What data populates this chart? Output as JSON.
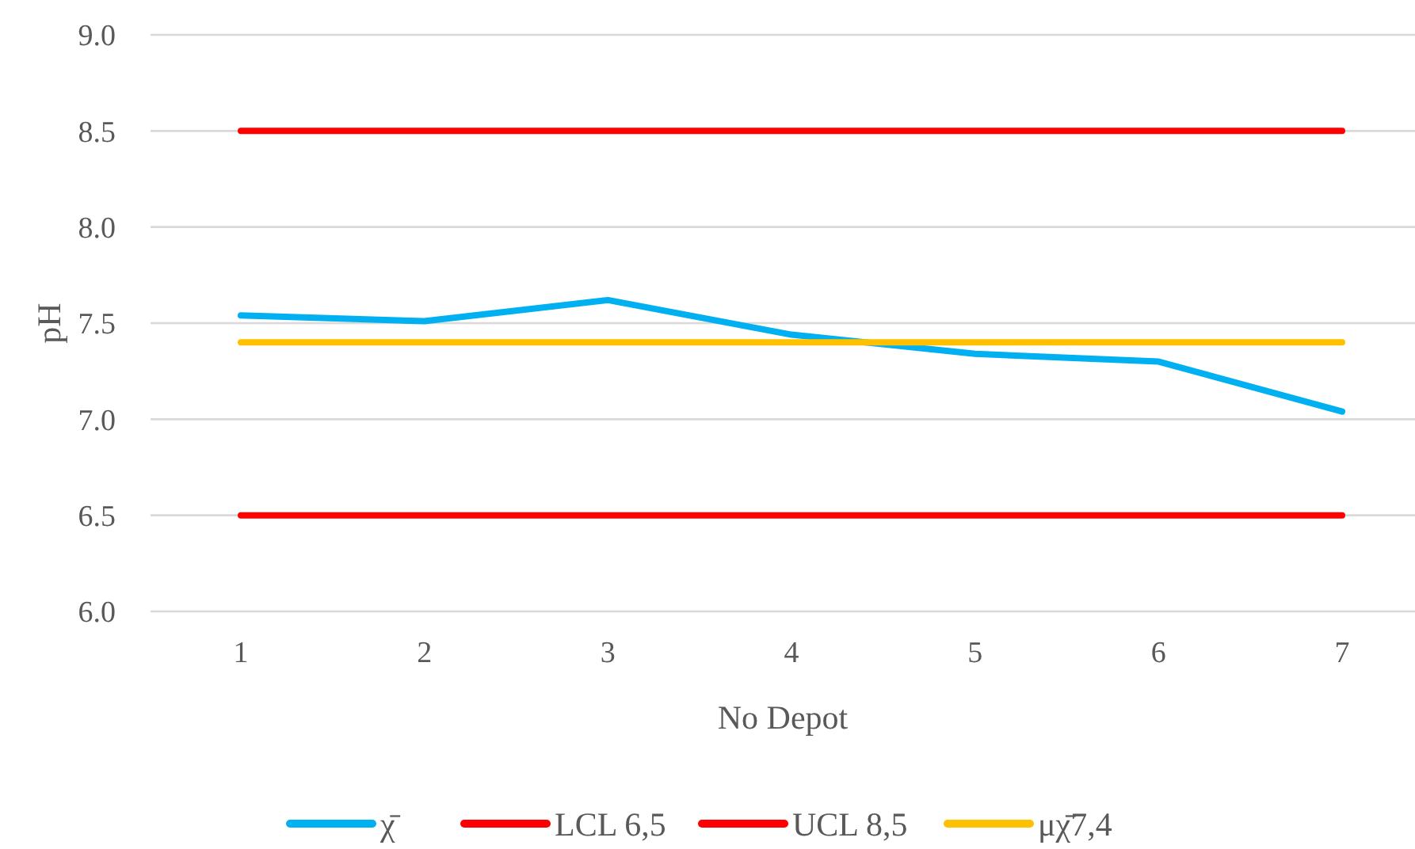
{
  "chart_data": {
    "type": "line",
    "xlabel": "No Depot",
    "ylabel": "pH",
    "categories": [
      "1",
      "2",
      "3",
      "4",
      "5",
      "6",
      "7"
    ],
    "series": [
      {
        "name": "χ̄",
        "color": "#00b0f0",
        "values": [
          7.54,
          7.51,
          7.62,
          7.44,
          7.34,
          7.3,
          7.04
        ]
      },
      {
        "name": "LCL 6,5",
        "color": "#ff0000",
        "values": [
          6.5,
          6.5,
          6.5,
          6.5,
          6.5,
          6.5,
          6.5
        ]
      },
      {
        "name": "UCL 8,5",
        "color": "#ff0000",
        "values": [
          8.5,
          8.5,
          8.5,
          8.5,
          8.5,
          8.5,
          8.5
        ]
      },
      {
        "name": "μχ̄7,4",
        "color": "#ffc000",
        "values": [
          7.4,
          7.4,
          7.4,
          7.4,
          7.4,
          7.4,
          7.4
        ]
      }
    ],
    "ylim": [
      6,
      9
    ],
    "yticks": [
      {
        "value": 6,
        "label": "6.0"
      },
      {
        "value": 6.5,
        "label": "6.5"
      },
      {
        "value": 7,
        "label": "7.0"
      },
      {
        "value": 7.5,
        "label": "7.5"
      },
      {
        "value": 8,
        "label": "8.0"
      },
      {
        "value": 8.5,
        "label": "8.5"
      },
      {
        "value": 9,
        "label": "9.0"
      }
    ],
    "grid": "y",
    "legend": "bottom",
    "line_style": "solid"
  }
}
